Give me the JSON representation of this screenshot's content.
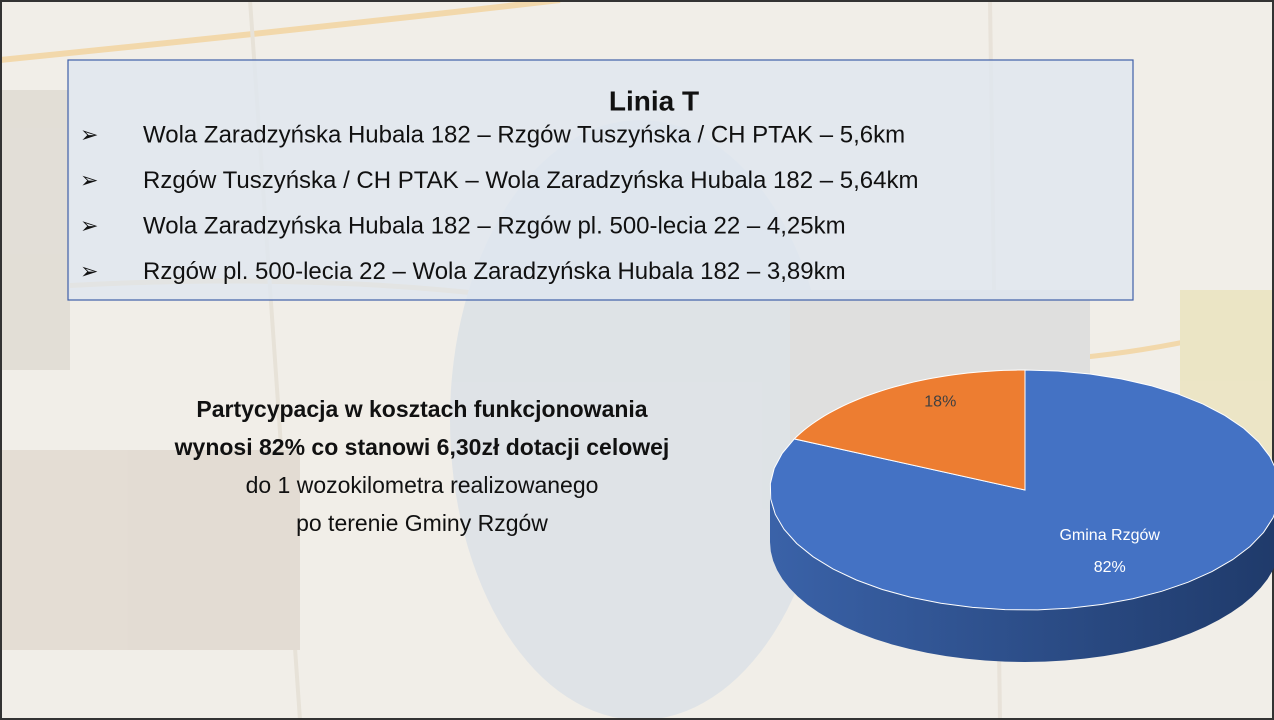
{
  "header": {
    "title": "Linia T"
  },
  "routes": [
    "Wola Zaradzyńska Hubala 182 – Rzgów Tuszyńska / CH PTAK – 5,6km",
    "Rzgów Tuszyńska / CH PTAK – Wola Zaradzyńska Hubala 182 – 5,64km",
    "Wola Zaradzyńska Hubala 182 – Rzgów pl. 500-lecia 22 – 4,25km",
    "Rzgów pl. 500-lecia 22 – Wola Zaradzyńska Hubala 182 – 3,89km"
  ],
  "text": {
    "bold_lines": [
      "Partycypacja w kosztach funkcjonowania",
      "wynosi 82% co stanowi 6,30zł dotacji celowej"
    ],
    "lines": [
      "do 1 wozokilometra realizowanego",
      "po terenie Gminy Rzgów"
    ]
  },
  "chart_data": {
    "type": "pie",
    "categories": [
      "Gmina Rzgów",
      null
    ],
    "values": [
      82,
      18
    ],
    "value_labels": [
      "82%",
      "18%"
    ],
    "colors": [
      "#4472c4",
      "#ed7d31"
    ],
    "start": "top",
    "direction": "clockwise"
  }
}
